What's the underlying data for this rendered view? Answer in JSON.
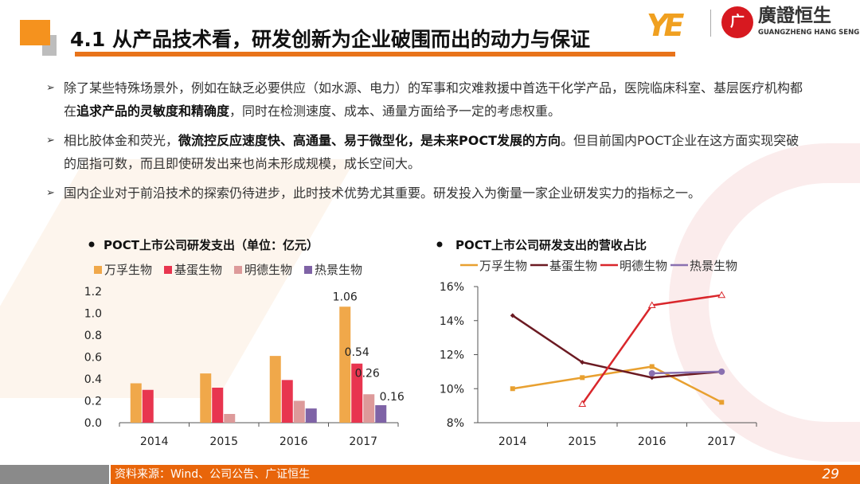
{
  "header": {
    "title": "4.1 从产品技术看，研发创新为企业破围而出的动力与保证",
    "logo_mark": "YE",
    "logo_seal": "广",
    "logo_cn": "廣證恒生",
    "logo_en": "GUANGZHENG HANG SENG"
  },
  "bullets": [
    {
      "pre": "除了某些特殊场景外，例如在缺乏必要供应（如水源、电力）的军事和灾难救援中首选干化学产品，医院临床科室、基层医疗机构都在",
      "bold": "追求产品的灵敏度和精确度",
      "post": "，同时在检测速度、成本、通量方面给予一定的考虑权重。"
    },
    {
      "pre": "相比胶体金和荧光，",
      "bold": "微流控反应速度快、高通量、易于微型化，是未来POCT发展的方向",
      "post": "。但目前国内POCT企业在这方面实现突破的屈指可数，而且即使研发出来也尚未形成规模，成长空间大。"
    },
    {
      "pre": "国内企业对于前沿技术的探索仍待进步，此时技术优势尤其重要。研发投入为衡量一家企业研发实力的指标之一。",
      "bold": "",
      "post": ""
    }
  ],
  "chart_data": [
    {
      "type": "bar",
      "title": "POCT上市公司研发支出（单位：亿元）",
      "categories": [
        "2014",
        "2015",
        "2016",
        "2017"
      ],
      "series": [
        {
          "name": "万孚生物",
          "color": "#f0a84a",
          "values": [
            0.36,
            0.45,
            0.61,
            1.06
          ]
        },
        {
          "name": "基蛋生物",
          "color": "#e8354f",
          "values": [
            0.3,
            0.32,
            0.39,
            0.54
          ]
        },
        {
          "name": "明德生物",
          "color": "#dd9a9a",
          "values": [
            null,
            0.08,
            0.2,
            0.26
          ]
        },
        {
          "name": "热景生物",
          "color": "#7f63a6",
          "values": [
            null,
            null,
            0.13,
            0.16
          ]
        }
      ],
      "data_labels": {
        "2017": [
          "1.06",
          "0.54",
          "0.26",
          "0.16"
        ]
      },
      "ylim": [
        0,
        1.2
      ],
      "yticks": [
        "0.0",
        "0.2",
        "0.4",
        "0.6",
        "0.8",
        "1.0",
        "1.2"
      ],
      "legend": "top"
    },
    {
      "type": "line",
      "title": "POCT上市公司研发支出的营收占比",
      "categories": [
        "2014",
        "2015",
        "2016",
        "2017"
      ],
      "series": [
        {
          "name": "万孚生物",
          "color": "#e8a030",
          "marker": "square",
          "values": [
            10.0,
            10.65,
            11.3,
            9.2
          ]
        },
        {
          "name": "基蛋生物",
          "color": "#6b1a22",
          "marker": "diamond",
          "values": [
            14.3,
            11.55,
            10.65,
            11.0
          ]
        },
        {
          "name": "明德生物",
          "color": "#d9262b",
          "marker": "triangle",
          "values": [
            null,
            9.1,
            14.9,
            15.5
          ]
        },
        {
          "name": "热景生物",
          "color": "#8a70b0",
          "marker": "circle",
          "values": [
            null,
            null,
            10.9,
            11.0
          ]
        }
      ],
      "ylim": [
        8,
        16
      ],
      "yticks": [
        "8%",
        "10%",
        "12%",
        "14%",
        "16%"
      ],
      "legend": "top"
    }
  ],
  "footer": {
    "source": "资料来源：Wind、公司公告、广证恒生",
    "page": "29"
  }
}
